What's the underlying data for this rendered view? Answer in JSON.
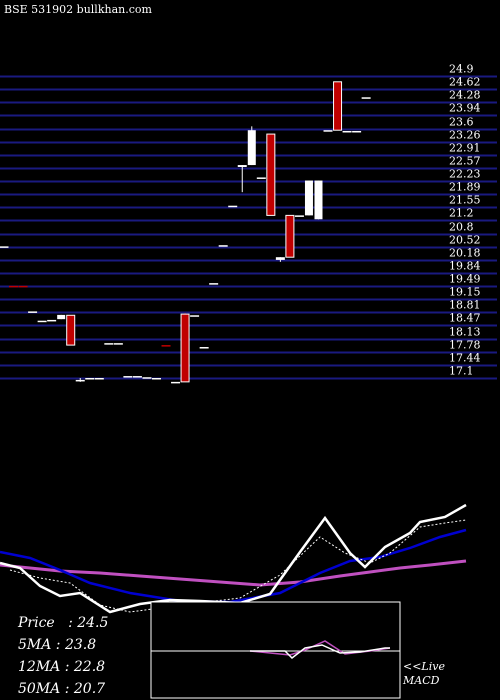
{
  "header": {
    "exchange": "BSE",
    "code": "531902",
    "site": "bullkhan.com"
  },
  "stats": {
    "price": "Price   : 24.5",
    "ma5": "5MA : 23.8",
    "ma12": "12MA : 22.8",
    "ma50": "50MA : 20.7"
  },
  "macd_label": {
    "line1": "<<Live",
    "line2": "MACD"
  },
  "colors": {
    "up": "#ffffff",
    "down": "#c00000",
    "grid": "#1a1a80",
    "ma_fast": "#0000d0",
    "ma_slow": "#c050c0"
  },
  "chart_data": {
    "type": "candlestick",
    "y_ticks": [
      "24.9",
      "24.62",
      "24.28",
      "23.94",
      "23.6",
      "23.26",
      "22.91",
      "22.57",
      "22.23",
      "21.89",
      "21.55",
      "21.2",
      "20.8",
      "20.52",
      "20.18",
      "19.84",
      "19.49",
      "19.15",
      "18.81",
      "18.47",
      "18.13",
      "17.78",
      "17.44",
      "17.1"
    ],
    "candles": [
      {
        "o": 20.5,
        "h": 20.5,
        "l": 20.5,
        "c": 20.5,
        "dir": "up"
      },
      {
        "o": 19.48,
        "h": 19.48,
        "l": 19.48,
        "c": 19.48,
        "dir": "down"
      },
      {
        "o": 19.48,
        "h": 19.48,
        "l": 19.48,
        "c": 19.48,
        "dir": "down"
      },
      {
        "o": 18.82,
        "h": 18.82,
        "l": 18.82,
        "c": 18.82,
        "dir": "up"
      },
      {
        "o": 18.58,
        "h": 18.58,
        "l": 18.58,
        "c": 18.58,
        "dir": "up"
      },
      {
        "o": 18.6,
        "h": 18.6,
        "l": 18.6,
        "c": 18.6,
        "dir": "up"
      },
      {
        "o": 18.62,
        "h": 18.73,
        "l": 18.62,
        "c": 18.73,
        "dir": "up"
      },
      {
        "o": 18.72,
        "h": 18.72,
        "l": 17.95,
        "c": 17.95,
        "dir": "down"
      },
      {
        "o": 17.05,
        "h": 17.1,
        "l": 17.0,
        "c": 17.05,
        "dir": "up"
      },
      {
        "o": 17.1,
        "h": 17.1,
        "l": 17.1,
        "c": 17.1,
        "dir": "up"
      },
      {
        "o": 17.1,
        "h": 17.1,
        "l": 17.1,
        "c": 17.1,
        "dir": "up"
      },
      {
        "o": 18.0,
        "h": 18.0,
        "l": 18.0,
        "c": 18.0,
        "dir": "up"
      },
      {
        "o": 18.0,
        "h": 18.0,
        "l": 18.0,
        "c": 18.0,
        "dir": "up"
      },
      {
        "o": 17.15,
        "h": 17.15,
        "l": 17.15,
        "c": 17.15,
        "dir": "up"
      },
      {
        "o": 17.15,
        "h": 17.15,
        "l": 17.15,
        "c": 17.15,
        "dir": "up"
      },
      {
        "o": 17.12,
        "h": 17.12,
        "l": 17.12,
        "c": 17.12,
        "dir": "up"
      },
      {
        "o": 17.1,
        "h": 17.1,
        "l": 17.1,
        "c": 17.1,
        "dir": "up"
      },
      {
        "o": 17.95,
        "h": 17.95,
        "l": 17.95,
        "c": 17.95,
        "dir": "down"
      },
      {
        "o": 17.0,
        "h": 17.0,
        "l": 17.0,
        "c": 17.0,
        "dir": "up"
      },
      {
        "o": 18.75,
        "h": 18.78,
        "l": 17.0,
        "c": 17.0,
        "dir": "down"
      },
      {
        "o": 18.72,
        "h": 18.72,
        "l": 18.72,
        "c": 18.72,
        "dir": "up"
      },
      {
        "o": 17.9,
        "h": 17.9,
        "l": 17.9,
        "c": 17.9,
        "dir": "up"
      },
      {
        "o": 19.55,
        "h": 19.55,
        "l": 19.55,
        "c": 19.55,
        "dir": "up"
      },
      {
        "o": 20.53,
        "h": 20.53,
        "l": 20.53,
        "c": 20.53,
        "dir": "up"
      },
      {
        "o": 21.55,
        "h": 21.55,
        "l": 21.55,
        "c": 21.55,
        "dir": "up"
      },
      {
        "o": 22.55,
        "h": 22.6,
        "l": 21.9,
        "c": 22.6,
        "dir": "up"
      },
      {
        "o": 22.6,
        "h": 23.6,
        "l": 22.6,
        "c": 23.5,
        "dir": "up"
      },
      {
        "o": 22.28,
        "h": 22.28,
        "l": 22.28,
        "c": 22.28,
        "dir": "up"
      },
      {
        "o": 23.4,
        "h": 23.4,
        "l": 21.3,
        "c": 21.3,
        "dir": "down"
      },
      {
        "o": 20.15,
        "h": 20.22,
        "l": 20.1,
        "c": 20.22,
        "dir": "up"
      },
      {
        "o": 21.3,
        "h": 21.3,
        "l": 20.22,
        "c": 20.22,
        "dir": "down"
      },
      {
        "o": 21.3,
        "h": 21.3,
        "l": 21.3,
        "c": 21.3,
        "dir": "up"
      },
      {
        "o": 21.3,
        "h": 22.2,
        "l": 21.3,
        "c": 22.2,
        "dir": "up"
      },
      {
        "o": 21.2,
        "h": 22.2,
        "l": 21.2,
        "c": 22.2,
        "dir": "up"
      },
      {
        "o": 23.5,
        "h": 23.5,
        "l": 23.5,
        "c": 23.5,
        "dir": "up"
      },
      {
        "o": 24.75,
        "h": 24.75,
        "l": 23.5,
        "c": 23.5,
        "dir": "down"
      },
      {
        "o": 23.48,
        "h": 23.48,
        "l": 23.48,
        "c": 23.48,
        "dir": "up"
      },
      {
        "o": 23.48,
        "h": 23.48,
        "l": 23.48,
        "c": 23.48,
        "dir": "up"
      },
      {
        "o": 24.35,
        "h": 24.35,
        "l": 24.35,
        "c": 24.35,
        "dir": "up"
      }
    ]
  }
}
